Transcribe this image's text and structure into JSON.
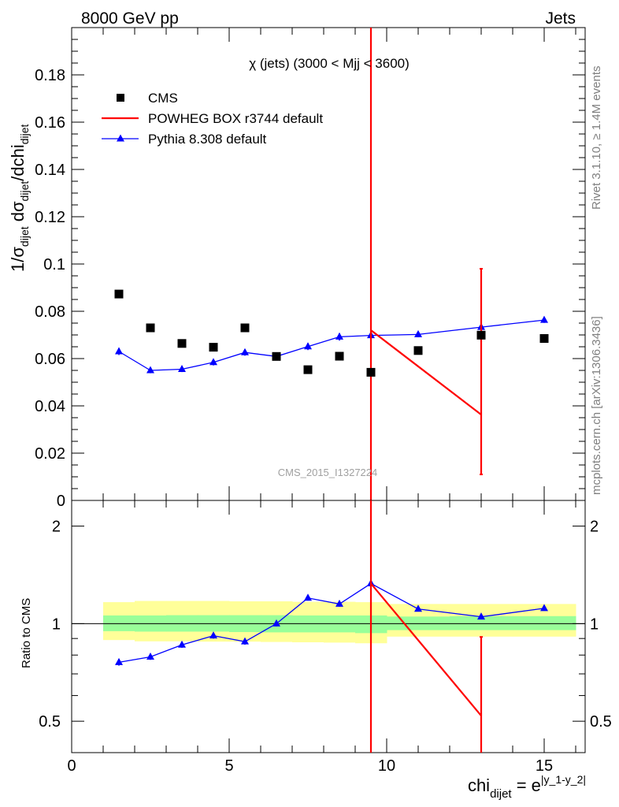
{
  "header": {
    "left": "8000 GeV pp",
    "right": "Jets"
  },
  "side": {
    "rivet": "Rivet 3.1.10, ≥ 1.4M events",
    "mcplots": "mcplots.cern.ch [arXiv:1306.3436]"
  },
  "watermark": "CMS_2015_I1327224",
  "chart_data": [
    {
      "type": "scatter",
      "title": "χ (jets) (3000 < Mjj < 3600)",
      "ylabel": {
        "p1": "1/σ",
        "p1sub": "dijet",
        "p2": " dσ",
        "p2sub": "dijet",
        "p3": "/dchi",
        "p3sub": "dijet"
      },
      "xlim": [
        0,
        16.3
      ],
      "ylim": [
        0,
        0.2
      ],
      "ytick_labels": [
        "0",
        "0.02",
        "0.04",
        "0.06",
        "0.08",
        "0.1",
        "0.12",
        "0.14",
        "0.16",
        "0.18"
      ],
      "legend": [
        {
          "label": "CMS",
          "color": "#000000",
          "marker": "square"
        },
        {
          "label": "POWHEG BOX r3744 default",
          "color": "#ff0000",
          "marker": "line"
        },
        {
          "label": "Pythia 8.308 default",
          "color": "#0000ff",
          "marker": "triangle"
        }
      ],
      "series": [
        {
          "name": "CMS",
          "color": "#000000",
          "x": [
            1.5,
            2.5,
            3.5,
            4.5,
            5.5,
            6.5,
            7.5,
            8.5,
            9.5,
            11.0,
            13.0,
            15.0
          ],
          "y": [
            0.0873,
            0.073,
            0.0664,
            0.0648,
            0.073,
            0.0609,
            0.0553,
            0.061,
            0.0542,
            0.0634,
            0.0699,
            0.0685
          ]
        },
        {
          "name": "POWHEG BOX r3744 default",
          "color": "#ff0000",
          "x": [
            9.5,
            13.0
          ],
          "y": [
            0.072,
            0.0363
          ],
          "yerr_low": [
            0.072,
            0.0253
          ],
          "yerr_high": [
            0.1445,
            0.0617
          ]
        },
        {
          "name": "Pythia 8.308 default",
          "color": "#0000ff",
          "x": [
            1.5,
            2.5,
            3.5,
            4.5,
            5.5,
            6.5,
            7.5,
            8.5,
            9.5,
            11.0,
            13.0,
            15.0
          ],
          "y": [
            0.063,
            0.055,
            0.0555,
            0.0584,
            0.0626,
            0.0609,
            0.0651,
            0.0692,
            0.0698,
            0.0702,
            0.0733,
            0.0763
          ],
          "yerr": [
            0.0015,
            0.0012,
            0.0012,
            0.0013,
            0.0014,
            0.0013,
            0.0015,
            0.0016,
            0.0015,
            0.0012,
            0.0012,
            0.0012
          ]
        }
      ]
    },
    {
      "type": "scatter",
      "ylabel": "Ratio to CMS",
      "xlabel": {
        "base": "chi",
        "sub": "dijet",
        "eq": " = e",
        "sup": "|y_1-y_2|"
      },
      "xlim": [
        0,
        16.3
      ],
      "ylim": [
        0.4,
        2.4
      ],
      "ylog": true,
      "ytick_labels": [
        "0.5",
        "1",
        "2"
      ],
      "xtick_labels": [
        "0",
        "5",
        "10",
        "15"
      ],
      "bands": {
        "bin_edges": [
          1,
          2,
          3,
          4,
          5,
          6,
          7,
          8,
          9,
          10,
          12,
          14,
          16
        ],
        "inner_low": [
          0.948,
          0.945,
          0.945,
          0.945,
          0.942,
          0.94,
          0.94,
          0.94,
          0.935,
          0.955,
          0.955,
          0.955
        ],
        "inner_high": [
          1.06,
          1.06,
          1.062,
          1.062,
          1.062,
          1.062,
          1.06,
          1.06,
          1.06,
          1.052,
          1.055,
          1.055
        ],
        "outer_low": [
          0.89,
          0.882,
          0.882,
          0.88,
          0.88,
          0.878,
          0.876,
          0.874,
          0.87,
          0.912,
          0.912,
          0.912
        ],
        "outer_high": [
          1.165,
          1.175,
          1.175,
          1.175,
          1.172,
          1.172,
          1.168,
          1.168,
          1.165,
          1.15,
          1.15,
          1.15
        ],
        "inner_color": "#99ff99",
        "outer_color": "#ffff99"
      },
      "series": [
        {
          "name": "POWHEG BOX r3744 default",
          "color": "#ff0000",
          "x": [
            9.5,
            13.0
          ],
          "y": [
            1.33,
            0.52
          ],
          "yerr_low": [
            1.33,
            0.36
          ],
          "yerr_high": [
            1.3,
            0.39
          ]
        },
        {
          "name": "Pythia 8.308 default",
          "color": "#0000ff",
          "x": [
            1.5,
            2.5,
            3.5,
            4.5,
            5.5,
            6.5,
            7.5,
            8.5,
            9.5,
            11.0,
            13.0,
            15.0
          ],
          "y": [
            0.76,
            0.79,
            0.86,
            0.918,
            0.88,
            1.0,
            1.2,
            1.15,
            1.33,
            1.11,
            1.05,
            1.115
          ],
          "yerr": [
            0.018,
            0.017,
            0.018,
            0.019,
            0.019,
            0.019,
            0.022,
            0.022,
            0.024,
            0.018,
            0.018,
            0.018
          ]
        }
      ]
    }
  ]
}
